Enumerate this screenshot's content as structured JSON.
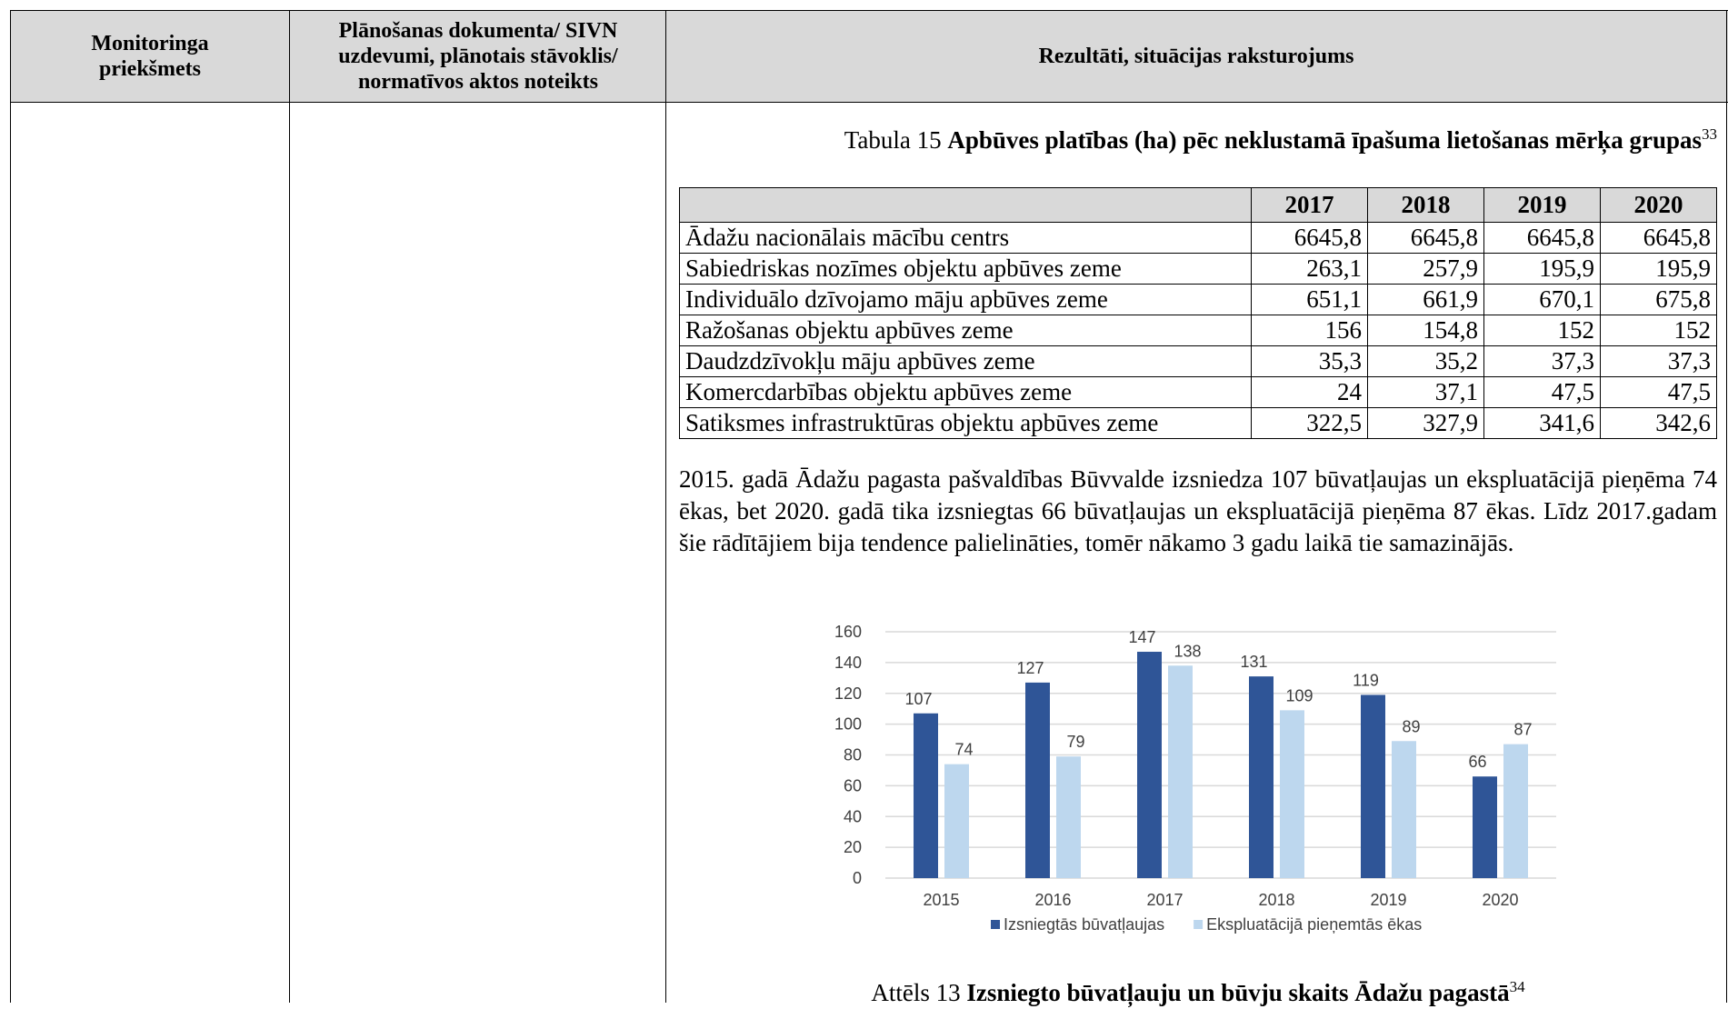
{
  "header": {
    "columns": [
      "Monitoringa priekšmets",
      "Plānošanas dokumenta/ SIVN uzdevumi, plānotais stāvoklis/ normatīvos aktos noteikts",
      "Rezultāti, situācijas raksturojums"
    ]
  },
  "table_caption": {
    "label": "Tabula 15",
    "title": "Apbūves platības (ha) pēc neklustamā īpašuma lietošanas mērķa grupas",
    "footnote": "33"
  },
  "table": {
    "columns": [
      "2017",
      "2018",
      "2019",
      "2020"
    ],
    "rows": [
      [
        "Ādažu nacionālais mācību centrs",
        "6645,8",
        "6645,8",
        "6645,8",
        "6645,8"
      ],
      [
        "Sabiedriskas nozīmes objektu apbūves zeme",
        "263,1",
        "257,9",
        "195,9",
        "195,9"
      ],
      [
        "Individuālo dzīvojamo māju apbūves zeme",
        "651,1",
        "661,9",
        "670,1",
        "675,8"
      ],
      [
        "Ražošanas objektu apbūves zeme",
        "156",
        "154,8",
        "152",
        "152"
      ],
      [
        "Daudzdzīvokļu māju apbūves zeme",
        "35,3",
        "35,2",
        "37,3",
        "37,3"
      ],
      [
        "Komercdarbības objektu apbūves zeme",
        "24",
        "37,1",
        "47,5",
        "47,5"
      ],
      [
        "Satiksmes infrastruktūras objektu apbūves zeme",
        "322,5",
        "327,9",
        "341,6",
        "342,6"
      ]
    ]
  },
  "paragraph": "2015. gadā Ādažu pagasta pašvaldības Būvvalde izsniedza 107 būvatļaujas un ekspluatācijā pieņēma 74 ēkas, bet 2020. gadā tika izsniegtas 66 būvatļaujas un ekspluatācijā pieņēma 87 ēkas. Līdz 2017.gadam šie rādītājiem bija tendence palielināties, tomēr nākamo 3 gadu laikā tie samazinājās.",
  "chart_data": {
    "type": "bar",
    "categories": [
      "2015",
      "2016",
      "2017",
      "2018",
      "2019",
      "2020"
    ],
    "series": [
      {
        "name": "Izsniegtās būvatļaujas",
        "color": "#2f5597",
        "values": [
          107,
          127,
          147,
          131,
          119,
          66
        ]
      },
      {
        "name": "Ekspluatācijā pieņemtās ēkas",
        "color": "#bdd7ee",
        "values": [
          74,
          79,
          138,
          109,
          89,
          87
        ]
      }
    ],
    "ylim": [
      0,
      160
    ],
    "yticks": [
      0,
      20,
      40,
      60,
      80,
      100,
      120,
      140,
      160
    ],
    "grid": true,
    "legend": "bottom"
  },
  "figure_caption": {
    "label": "Attēls 13",
    "title": "Izsniegto būvatļauju un būvju skaits Ādažu pagastā",
    "footnote": "34"
  }
}
